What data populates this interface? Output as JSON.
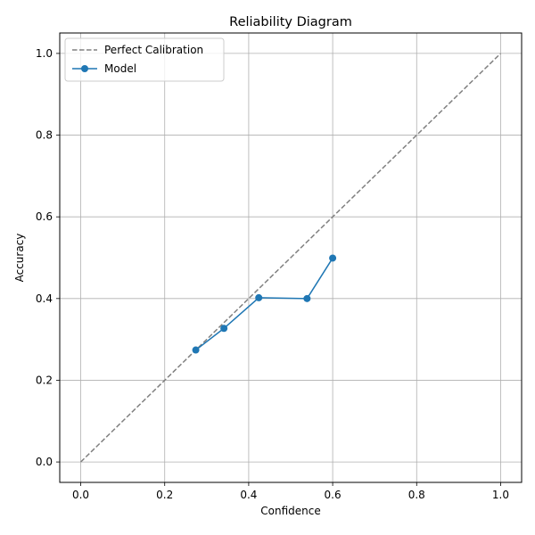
{
  "chart_data": {
    "type": "line",
    "title": "Reliability Diagram",
    "xlabel": "Confidence",
    "ylabel": "Accuracy",
    "xlim": [
      -0.05,
      1.05
    ],
    "ylim": [
      -0.05,
      1.05
    ],
    "xticks": [
      0.0,
      0.2,
      0.4,
      0.6,
      0.8,
      1.0
    ],
    "yticks": [
      0.0,
      0.2,
      0.4,
      0.6,
      0.8,
      1.0
    ],
    "xtick_labels": [
      "0.0",
      "0.2",
      "0.4",
      "0.6",
      "0.8",
      "1.0"
    ],
    "ytick_labels": [
      "0.0",
      "0.2",
      "0.4",
      "0.6",
      "0.8",
      "1.0"
    ],
    "grid": true,
    "legend_position": "top-left",
    "series": [
      {
        "name": "Perfect Calibration",
        "style": "dashed",
        "marker": "none",
        "color": "#808080",
        "x": [
          0.0,
          1.0
        ],
        "y": [
          0.0,
          1.0
        ]
      },
      {
        "name": "Model",
        "style": "solid",
        "marker": "circle",
        "color": "#1f77b4",
        "x": [
          0.274,
          0.341,
          0.424,
          0.539,
          0.6
        ],
        "y": [
          0.274,
          0.327,
          0.402,
          0.4,
          0.499
        ]
      }
    ]
  }
}
